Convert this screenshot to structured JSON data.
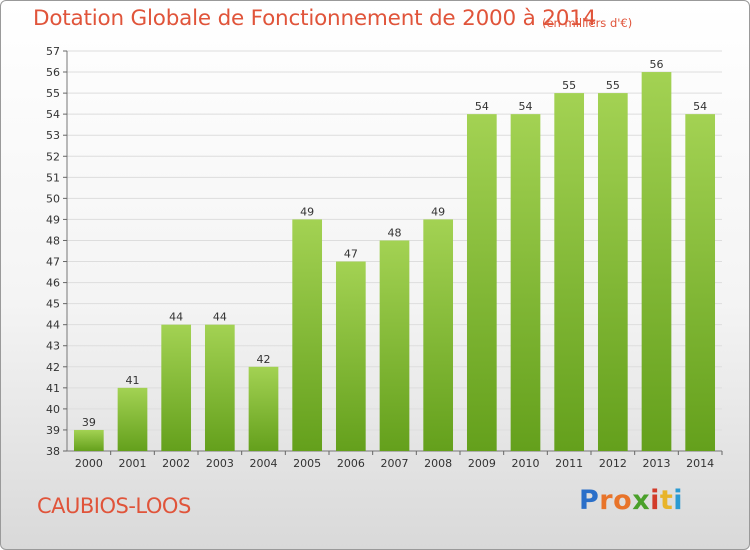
{
  "header": {
    "title": "Dotation Globale de Fonctionnement de 2000 à 2014",
    "unit": "(en milliers d'€)"
  },
  "footer": {
    "commune": "CAUBIOS-LOOS",
    "logo": {
      "letters": [
        "P",
        "r",
        "o",
        "x",
        "i",
        "t",
        "i"
      ],
      "colors": [
        "#2a6fc9",
        "#e8742a",
        "#e8742a",
        "#4aa02a",
        "#d23b2a",
        "#e8b42a",
        "#2a9ad2"
      ]
    }
  },
  "chart_data": {
    "type": "bar",
    "title": "Dotation Globale de Fonctionnement de 2000 à 2014",
    "subtitle": "(en milliers d'€)",
    "categories": [
      "2000",
      "2001",
      "2002",
      "2003",
      "2004",
      "2005",
      "2006",
      "2007",
      "2008",
      "2009",
      "2010",
      "2011",
      "2012",
      "2013",
      "2014"
    ],
    "values": [
      39,
      41,
      44,
      44,
      42,
      49,
      47,
      48,
      49,
      54,
      54,
      55,
      55,
      56,
      54
    ],
    "ylim": [
      38,
      57
    ],
    "yticks": [
      38,
      39,
      40,
      41,
      42,
      43,
      44,
      45,
      46,
      47,
      48,
      49,
      50,
      51,
      52,
      53,
      54,
      55,
      56,
      57
    ],
    "grid": true,
    "colors": {
      "bar_light": "#a3d253",
      "bar_dark": "#64a01c",
      "grid": "#dddddd"
    }
  }
}
